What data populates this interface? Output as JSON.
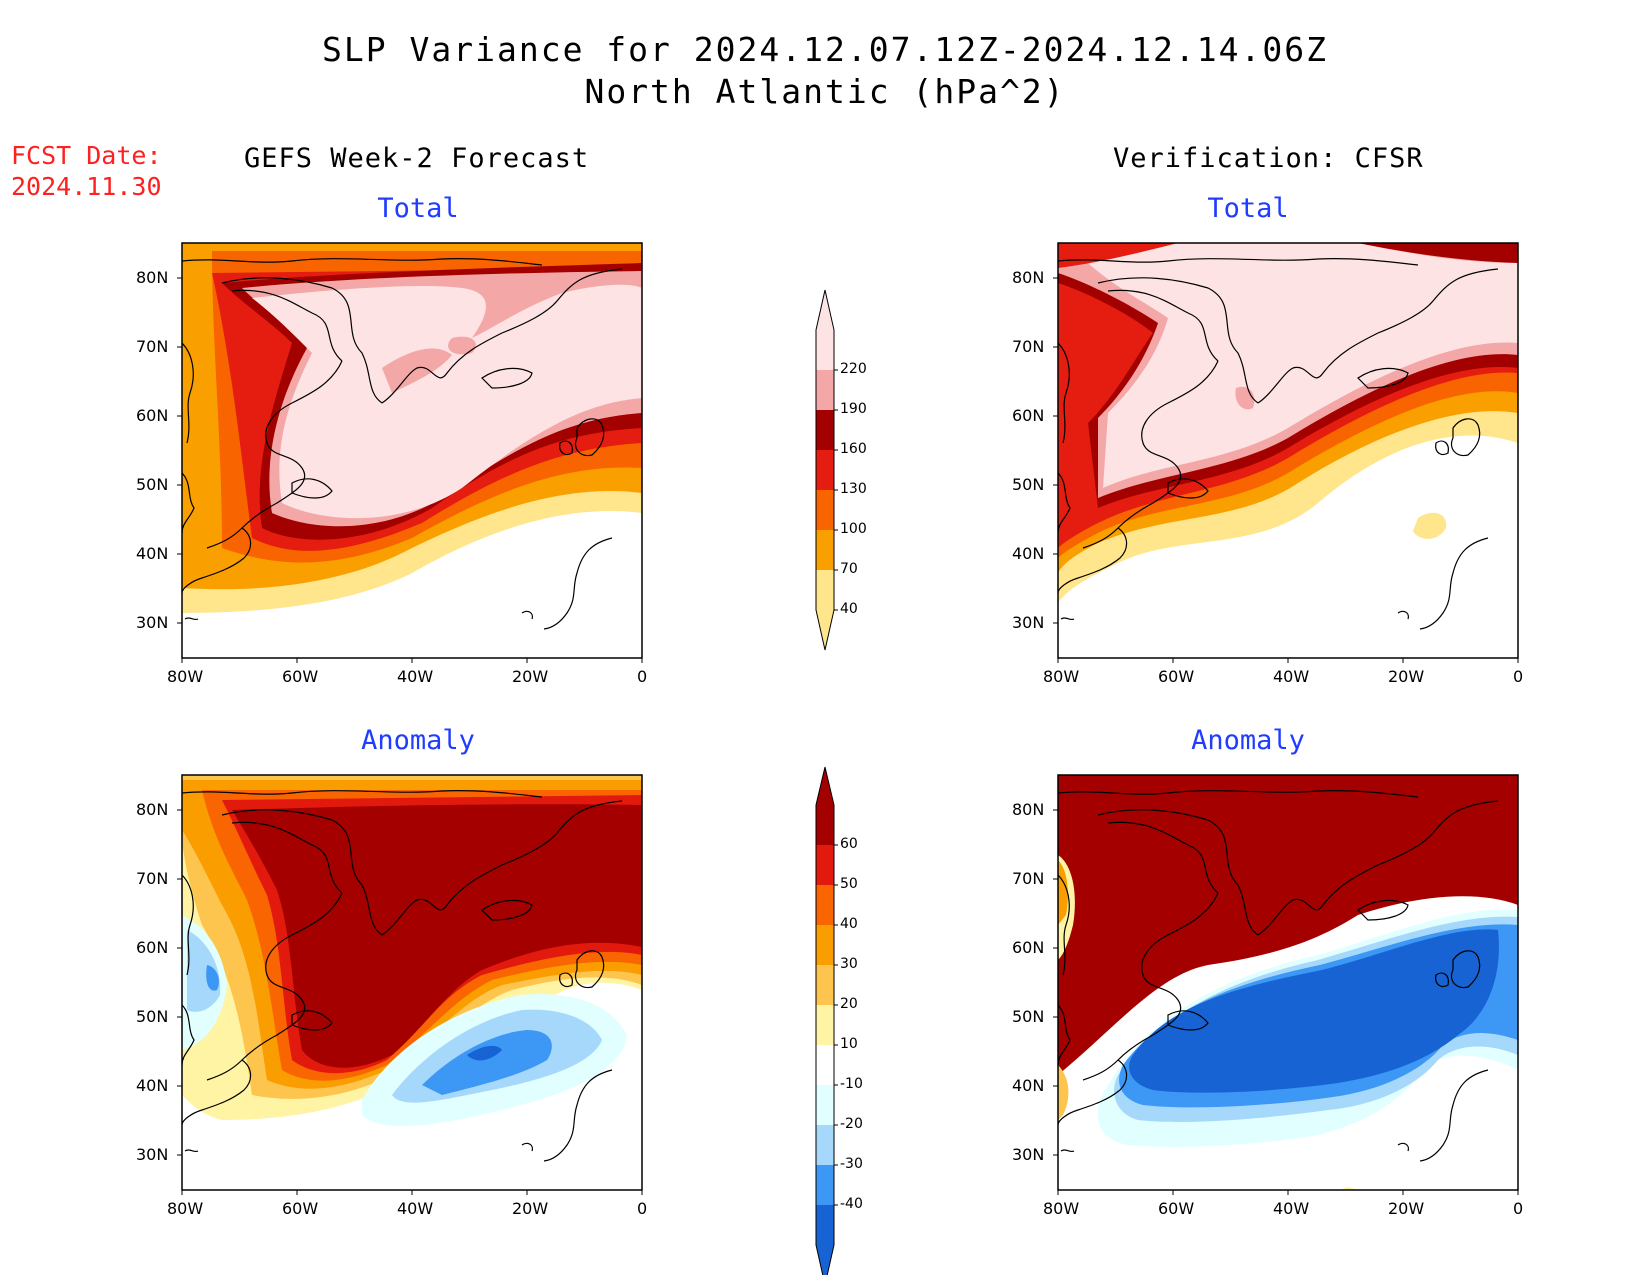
{
  "title": {
    "line1": "SLP Variance for 2024.12.07.12Z-2024.12.14.06Z",
    "line2": "North Atlantic (hPa^2)"
  },
  "fcst_date": {
    "label": "FCST Date:",
    "value": "2024.11.30"
  },
  "columns": {
    "left": "GEFS Week-2 Forecast",
    "right": "Verification: CFSR"
  },
  "panels": {
    "top_left": "Total",
    "top_right": "Total",
    "bottom_left": "Anomaly",
    "bottom_right": "Anomaly"
  },
  "axes": {
    "lat_ticks": [
      "80N",
      "70N",
      "60N",
      "50N",
      "40N",
      "30N"
    ],
    "lon_ticks": [
      "80W",
      "60W",
      "40W",
      "20W",
      "0"
    ]
  },
  "colorbars": {
    "total": {
      "labels": [
        "220",
        "190",
        "160",
        "130",
        "100",
        "70",
        "40"
      ],
      "colors": [
        "#fde3e3",
        "#f3a7a7",
        "#a30000",
        "#e41d10",
        "#f86400",
        "#fa9f00",
        "#ffe58b"
      ]
    },
    "anomaly": {
      "labels": [
        "60",
        "50",
        "40",
        "30",
        "20",
        "10",
        "-10",
        "-20",
        "-30",
        "-40"
      ],
      "colors": [
        "#a40000",
        "#e21a0e",
        "#f96500",
        "#fa9d00",
        "#fdc54e",
        "#fff3a4",
        "#ffffff",
        "#e2ffff",
        "#a6d8fb",
        "#3c97f5",
        "#1763d3"
      ]
    }
  }
}
